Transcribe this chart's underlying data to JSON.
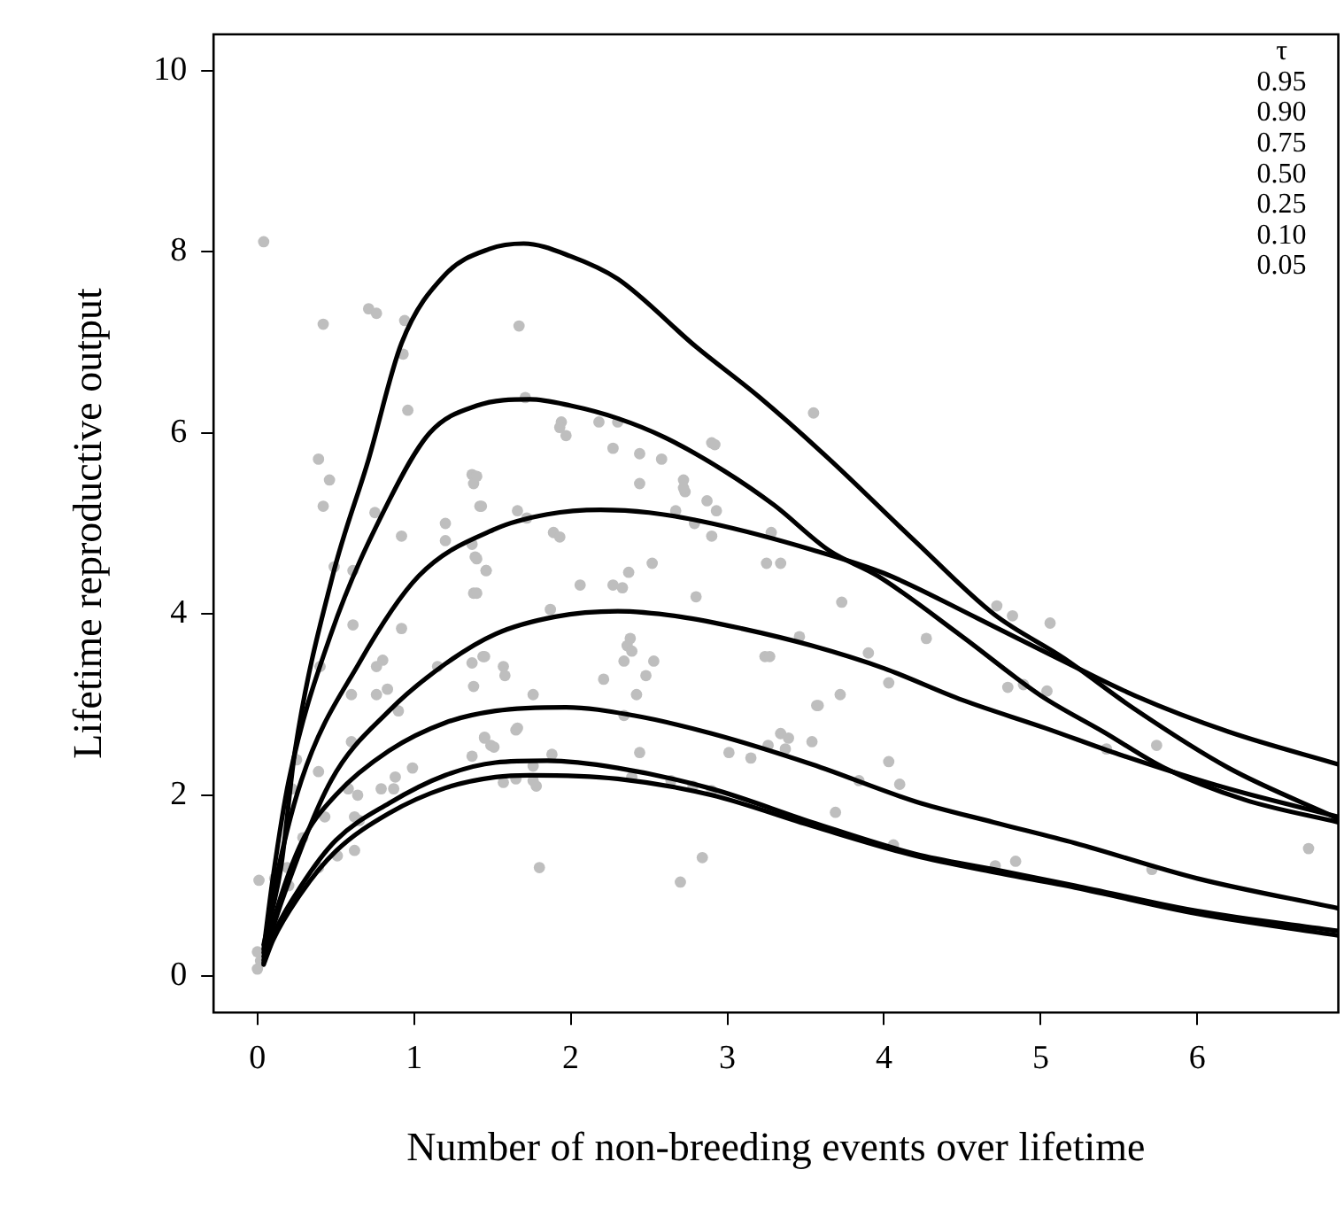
{
  "chart_data": {
    "type": "scatter",
    "xlabel": "Number of non-breeding events over lifetime",
    "ylabel": "Lifetime reproductive output",
    "xlim": [
      -0.28,
      6.9
    ],
    "ylim": [
      -0.4,
      10.4
    ],
    "xticks": [
      0,
      1,
      2,
      3,
      4,
      5,
      6
    ],
    "yticks": [
      0,
      2,
      4,
      6,
      8,
      10
    ],
    "grid": false,
    "annotations": [
      "τ",
      "0.95",
      "0.90",
      "0.75",
      "0.50",
      "0.25",
      "0.10",
      "0.05"
    ],
    "series": [
      {
        "color": "#bebebe",
        "marker": "circle",
        "x": [
          0.04,
          0.42,
          0.71,
          0.76,
          0.94,
          0.93,
          0.96,
          0.39,
          0.46,
          0.42,
          0.75,
          0.92,
          1.2,
          1.2,
          1.37,
          1.38,
          1.42,
          1.37,
          1.39,
          1.46,
          1.38,
          0.49,
          0.61,
          0.61,
          0.92,
          0.4,
          0.76,
          0.8,
          1.15,
          1.37,
          1.44,
          1.38,
          0.76,
          0.83,
          0.6,
          0.9,
          0.6,
          0.39,
          0.25,
          0.22,
          0.58,
          0.64,
          0.79,
          0.88,
          0.87,
          0.99,
          1.45,
          1.49,
          1.37,
          0.62,
          0.65,
          0.43,
          0.29,
          0.62,
          0.51,
          0.01,
          0.11,
          0.19,
          0.2,
          0.39,
          0,
          0,
          0.02,
          1.67,
          1.71,
          1.94,
          1.97,
          1.93,
          2.18,
          2.3,
          2.27,
          2.44,
          2.58,
          2.44,
          2.72,
          2.73,
          2.72,
          2.87,
          2.92,
          2.9,
          2.93,
          2.67,
          2.79,
          2.9,
          3.55,
          3.28,
          3.25,
          3.34,
          1.4,
          1.43,
          1.66,
          1.72,
          1.89,
          1.93,
          1.46,
          1.4,
          1.4,
          2.52,
          2.06,
          2.27,
          2.33,
          2.37,
          2.8,
          1.87,
          2.38,
          2.36,
          2.39,
          2.34,
          2.53,
          2.48,
          2.21,
          2.42,
          3.46,
          3.24,
          3.27,
          1.57,
          1.58,
          1.45,
          1.76,
          3.57,
          1.45,
          1.51,
          1.65,
          1.66,
          2.34,
          3.34,
          3.39,
          3.26,
          3.54,
          3.37,
          3.01,
          3.15,
          2.44,
          1.88,
          1.76,
          1.57,
          1.65,
          1.78,
          1.76,
          2.64,
          2.78,
          2.9,
          2.39,
          1.8,
          2.84,
          2.7,
          3.73,
          3.9,
          4.27,
          4.03,
          3.58,
          3.72,
          4.03,
          3.84,
          4.1,
          3.69,
          4.06,
          4.72,
          4.82,
          5.06,
          4.79,
          4.89,
          5.04,
          5.42,
          5.74,
          4.71,
          4.84,
          5.71,
          6.71
        ],
        "values": [
          8.11,
          7.2,
          7.37,
          7.32,
          7.24,
          6.87,
          6.25,
          5.71,
          5.48,
          5.19,
          5.12,
          4.86,
          5.0,
          4.81,
          5.54,
          5.44,
          5.19,
          4.77,
          4.63,
          4.48,
          4.23,
          4.52,
          4.48,
          3.88,
          3.84,
          3.42,
          3.42,
          3.49,
          3.42,
          3.46,
          3.53,
          3.2,
          3.11,
          3.17,
          3.11,
          2.93,
          2.59,
          2.26,
          2.39,
          2.07,
          2.07,
          2.0,
          2.07,
          2.2,
          2.07,
          2.3,
          2.64,
          2.55,
          2.43,
          1.76,
          1.72,
          1.76,
          1.53,
          1.39,
          1.33,
          1.06,
          1.08,
          1.2,
          1.0,
          1.2,
          0.27,
          0.08,
          0.17,
          7.18,
          6.39,
          6.12,
          5.97,
          6.06,
          6.12,
          6.12,
          5.83,
          5.77,
          5.71,
          5.44,
          5.48,
          5.35,
          5.39,
          5.25,
          5.87,
          5.89,
          5.14,
          5.14,
          5.0,
          4.86,
          6.22,
          4.9,
          4.56,
          4.56,
          5.52,
          5.19,
          5.14,
          5.06,
          4.9,
          4.85,
          4.48,
          4.61,
          4.23,
          4.56,
          4.32,
          4.32,
          4.29,
          4.46,
          4.19,
          4.05,
          3.73,
          3.65,
          3.59,
          3.48,
          3.48,
          3.32,
          3.28,
          3.11,
          3.75,
          3.53,
          3.53,
          3.42,
          3.32,
          3.53,
          3.11,
          2.99,
          2.63,
          2.53,
          2.72,
          2.74,
          2.88,
          2.68,
          2.63,
          2.55,
          2.59,
          2.51,
          2.47,
          2.41,
          2.47,
          2.45,
          2.32,
          2.14,
          2.18,
          2.1,
          2.16,
          2.16,
          2.1,
          2.05,
          2.2,
          1.2,
          1.31,
          1.04,
          4.13,
          3.57,
          3.73,
          3.24,
          2.99,
          3.11,
          2.37,
          2.16,
          2.12,
          1.81,
          1.45,
          4.09,
          3.98,
          3.9,
          3.19,
          3.22,
          3.15,
          2.51,
          2.55,
          1.22,
          1.27,
          1.18,
          1.41
        ]
      },
      {
        "type": "line",
        "color": "#000000",
        "marker": "none",
        "x": [
          0.04,
          0.15,
          0.24,
          0.48,
          0.71,
          0.92,
          1.2,
          1.48,
          1.7,
          2.0,
          2.3,
          2.8,
          3.2,
          3.65,
          4.2,
          4.7,
          5.15,
          5.6,
          6.2,
          6.9
        ],
        "values": [
          0.35,
          1.2,
          2.49,
          4.42,
          5.71,
          6.99,
          7.75,
          8.03,
          8.09,
          7.95,
          7.7,
          6.95,
          6.4,
          5.71,
          4.8,
          4.0,
          3.51,
          2.95,
          2.3,
          1.74
        ]
      },
      {
        "type": "line",
        "color": "#000000",
        "marker": "none",
        "x": [
          0.04,
          0.1,
          0.2,
          0.47,
          0.84,
          1.1,
          1.4,
          1.74,
          2.0,
          2.3,
          2.6,
          2.98,
          3.3,
          3.65,
          3.96,
          4.5,
          5.0,
          5.4,
          5.79,
          6.3,
          6.9
        ],
        "values": [
          0.3,
          1.1,
          2.16,
          3.78,
          5.25,
          6.0,
          6.3,
          6.37,
          6.3,
          6.16,
          5.95,
          5.58,
          5.2,
          4.7,
          4.42,
          3.75,
          3.1,
          2.7,
          2.3,
          1.95,
          1.7
        ]
      },
      {
        "type": "line",
        "color": "#000000",
        "marker": "none",
        "x": [
          0.04,
          0.1,
          0.28,
          0.65,
          1.03,
          1.52,
          1.85,
          2.19,
          2.5,
          2.9,
          3.54,
          4.0,
          4.6,
          5.11,
          5.6,
          6.2,
          6.9
        ],
        "values": [
          0.26,
          0.9,
          2.16,
          3.46,
          4.42,
          4.94,
          5.1,
          5.15,
          5.12,
          5.0,
          4.71,
          4.45,
          3.95,
          3.51,
          3.1,
          2.7,
          2.34
        ]
      },
      {
        "type": "line",
        "color": "#000000",
        "marker": "none",
        "x": [
          0.04,
          0.17,
          0.47,
          0.84,
          1.2,
          1.52,
          1.9,
          2.3,
          2.7,
          3.09,
          3.54,
          4.0,
          4.5,
          5.03,
          5.5,
          6.2,
          6.9
        ],
        "values": [
          0.22,
          0.9,
          2.16,
          2.93,
          3.45,
          3.78,
          3.97,
          4.03,
          3.97,
          3.84,
          3.65,
          3.4,
          3.05,
          2.74,
          2.45,
          2.07,
          1.76
        ]
      },
      {
        "type": "line",
        "color": "#000000",
        "marker": "none",
        "x": [
          0.04,
          0.1,
          0.28,
          0.5,
          0.84,
          1.2,
          1.52,
          1.97,
          2.4,
          2.9,
          3.54,
          4.2,
          4.7,
          5.22,
          6.0,
          6.9
        ],
        "values": [
          0.18,
          0.6,
          1.47,
          2.0,
          2.49,
          2.8,
          2.93,
          2.97,
          2.88,
          2.68,
          2.34,
          1.93,
          1.7,
          1.47,
          1.08,
          0.75
        ]
      },
      {
        "type": "line",
        "color": "#000000",
        "marker": "none",
        "x": [
          0.04,
          0.1,
          0.28,
          0.5,
          0.84,
          1.2,
          1.52,
          1.85,
          2.3,
          2.9,
          3.54,
          4.2,
          4.7,
          5.22,
          6.0,
          6.9
        ],
        "values": [
          0.15,
          0.45,
          1.0,
          1.5,
          1.91,
          2.22,
          2.36,
          2.38,
          2.3,
          2.07,
          1.7,
          1.35,
          1.18,
          1.0,
          0.72,
          0.5
        ]
      },
      {
        "type": "line",
        "color": "#000000",
        "marker": "none",
        "x": [
          0.04,
          0.1,
          0.28,
          0.5,
          0.84,
          1.2,
          1.52,
          1.74,
          2.3,
          2.9,
          3.54,
          4.2,
          4.7,
          5.22,
          6.0,
          6.9
        ],
        "values": [
          0.13,
          0.4,
          0.92,
          1.38,
          1.8,
          2.08,
          2.2,
          2.22,
          2.18,
          2.0,
          1.66,
          1.33,
          1.15,
          0.98,
          0.69,
          0.45
        ]
      }
    ]
  }
}
